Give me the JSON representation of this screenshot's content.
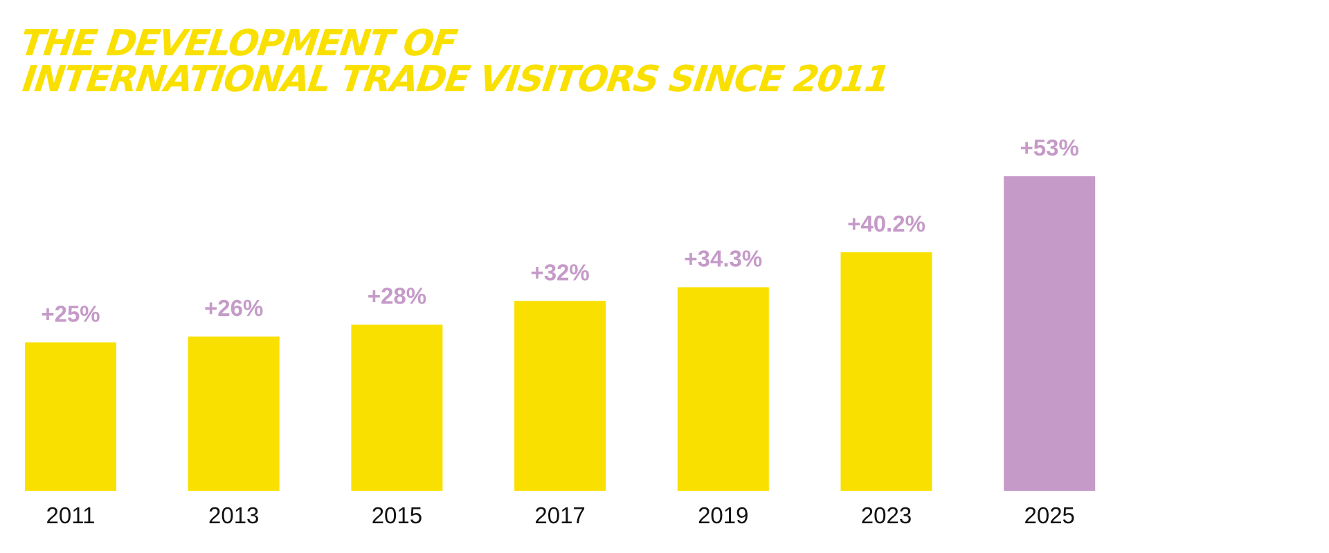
{
  "chart_data": {
    "type": "bar",
    "title": [
      "THE DEVELOPMENT OF",
      "INTERNATIONAL TRADE VISITORS SINCE 2011"
    ],
    "categories": [
      "2011",
      "2013",
      "2015",
      "2017",
      "2019",
      "2023",
      "2025"
    ],
    "values": [
      25,
      26,
      28,
      32,
      34.3,
      40.2,
      53
    ],
    "value_labels": [
      "+25%",
      "+26%",
      "+28%",
      "+32%",
      "+34.3%",
      "+40.2%",
      "+53%"
    ],
    "colors": [
      "#f9e000",
      "#f9e000",
      "#f9e000",
      "#f9e000",
      "#f9e000",
      "#f9e000",
      "#c59ac8"
    ],
    "title_color": "#f9e000",
    "label_color": "#c59ac8"
  }
}
